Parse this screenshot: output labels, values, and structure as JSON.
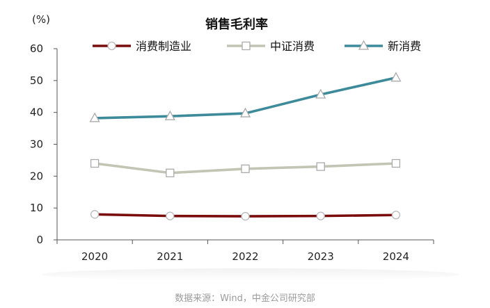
{
  "chart_data": {
    "type": "line",
    "title": "销售毛利率",
    "unit": "(%)",
    "categories": [
      "2020",
      "2021",
      "2022",
      "2023",
      "2024"
    ],
    "ylim": [
      0,
      60
    ],
    "yticks": [
      0,
      10,
      20,
      30,
      40,
      50,
      60
    ],
    "grid": false,
    "legend": "top",
    "series": [
      {
        "name": "消费制造业",
        "values": [
          8,
          7.5,
          7.4,
          7.5,
          7.8
        ],
        "color": "#7a0c0c",
        "marker": "circle"
      },
      {
        "name": "中证消费",
        "values": [
          24,
          21,
          22.3,
          23,
          24
        ],
        "color": "#c2c4b4",
        "marker": "square"
      },
      {
        "name": "新消费",
        "values": [
          38.2,
          38.8,
          39.7,
          45.6,
          50.9
        ],
        "color": "#3d8a9a",
        "marker": "triangle"
      }
    ]
  },
  "source": "数据来源：Wind，中金公司研究部"
}
